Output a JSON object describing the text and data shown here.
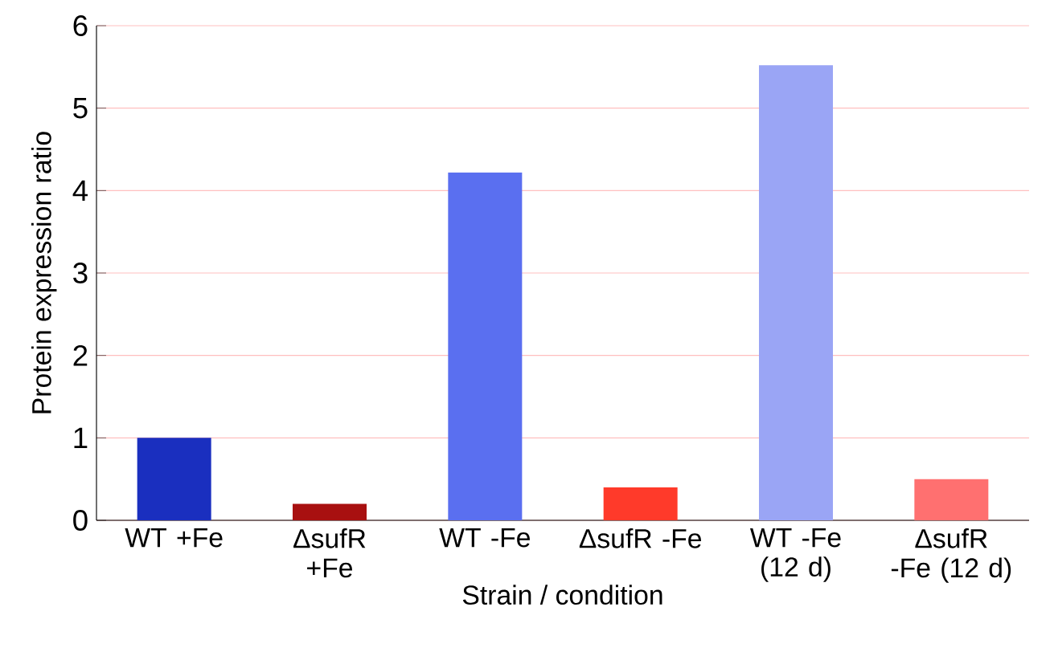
{
  "chart_data": {
    "type": "bar",
    "xlabel": "Strain / condition",
    "ylabel": "Protein expression ratio",
    "categories": [
      "WT +Fe",
      "ΔsufR +Fe",
      "WT -Fe",
      "ΔsufR -Fe",
      "WT -Fe (12 d)",
      "ΔsufR -Fe (12 d)"
    ],
    "values": [
      1.0,
      0.2,
      4.22,
      0.4,
      5.52,
      0.5
    ],
    "colors": [
      "#1a2fbf",
      "#a81010",
      "#5a6ff0",
      "#ff3a2a",
      "#9aa5f5",
      "#ff7070"
    ],
    "ylim": [
      0,
      6
    ],
    "yticks": [
      0,
      1,
      2,
      3,
      4,
      5,
      6
    ],
    "grid": "y"
  }
}
